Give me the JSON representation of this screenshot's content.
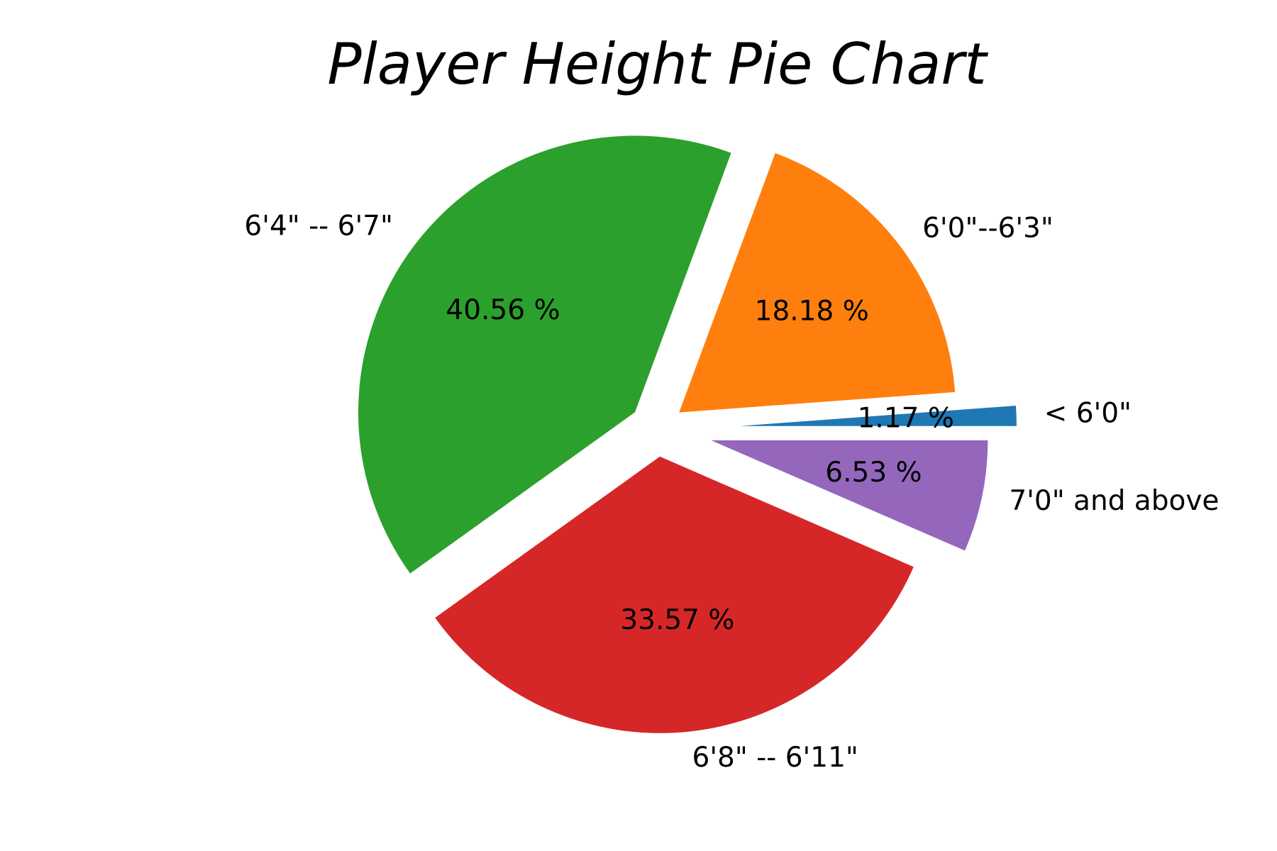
{
  "chart_data": {
    "type": "pie",
    "title": "Player Height Pie Chart",
    "categories": [
      "< 6'0\"",
      "6'0\"--6'3\"",
      "6'4\" -- 6'7\"",
      "6'8\" -- 6'11\"",
      "7'0\" and above"
    ],
    "values": [
      1.17,
      18.18,
      40.56,
      33.57,
      6.53
    ],
    "percent_labels": [
      "1.17 %",
      "18.18 %",
      "40.56 %",
      "33.57 %",
      "6.53 %"
    ],
    "explode": [
      0.3,
      0.1,
      0.1,
      0.1,
      0.2
    ],
    "colors": [
      "#1f77b4",
      "#ff7f0e",
      "#2ca02c",
      "#d62728",
      "#9467bd"
    ],
    "start_angle": 0,
    "direction": "counterclockwise",
    "legend": "none"
  }
}
